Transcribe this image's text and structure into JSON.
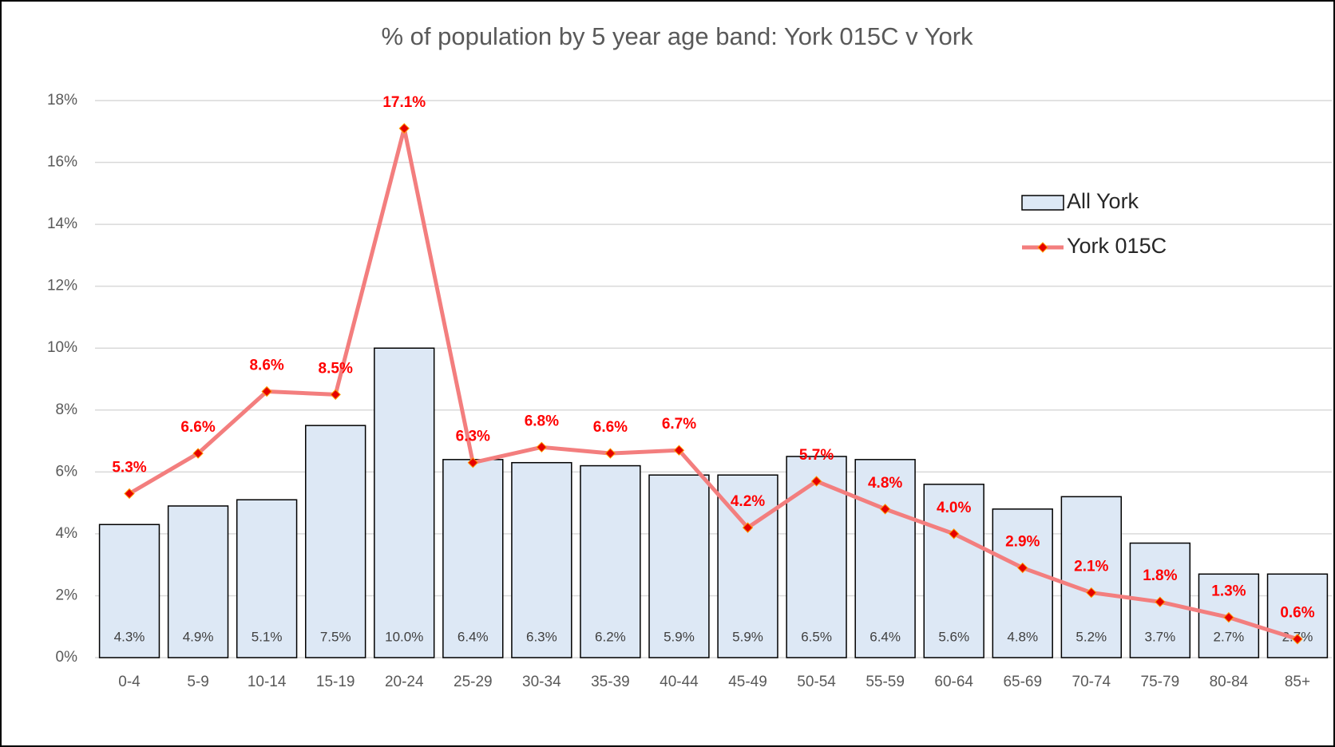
{
  "chart_data": {
    "type": "bar+line",
    "title": "% of population by 5 year age band: York 015C v York",
    "categories": [
      "0-4",
      "5-9",
      "10-14",
      "15-19",
      "20-24",
      "25-29",
      "30-34",
      "35-39",
      "40-44",
      "45-49",
      "50-54",
      "55-59",
      "60-64",
      "65-69",
      "70-74",
      "75-79",
      "80-84",
      "85+"
    ],
    "series": [
      {
        "name": "All York",
        "type": "bar",
        "color": "#dde8f5",
        "values": [
          4.3,
          4.9,
          5.1,
          7.5,
          10.0,
          6.4,
          6.3,
          6.2,
          5.9,
          5.9,
          6.5,
          6.4,
          5.6,
          4.8,
          5.2,
          3.7,
          2.7,
          2.7
        ],
        "value_labels": [
          "4.3%",
          "4.9%",
          "5.1%",
          "7.5%",
          "10.0%",
          "6.4%",
          "6.3%",
          "6.2%",
          "5.9%",
          "5.9%",
          "6.5%",
          "6.4%",
          "5.6%",
          "4.8%",
          "5.2%",
          "3.7%",
          "2.7%",
          "2.7%"
        ]
      },
      {
        "name": "York 015C",
        "type": "line",
        "color": "#f37e7e",
        "marker_color": "#e60000",
        "values": [
          5.3,
          6.6,
          8.6,
          8.5,
          17.1,
          6.3,
          6.8,
          6.6,
          6.7,
          4.2,
          5.7,
          4.8,
          4.0,
          2.9,
          2.1,
          1.8,
          1.3,
          0.6
        ],
        "value_labels": [
          "5.3%",
          "6.6%",
          "8.6%",
          "8.5%",
          "17.1%",
          "6.3%",
          "6.8%",
          "6.6%",
          "6.7%",
          "4.2%",
          "5.7%",
          "4.8%",
          "4.0%",
          "2.9%",
          "2.1%",
          "1.8%",
          "1.3%",
          "0.6%"
        ]
      }
    ],
    "ylim": [
      0,
      18
    ],
    "yticks": [
      {
        "value": 0,
        "label": "0%"
      },
      {
        "value": 2,
        "label": "2%"
      },
      {
        "value": 4,
        "label": "4%"
      },
      {
        "value": 6,
        "label": "6%"
      },
      {
        "value": 8,
        "label": "8%"
      },
      {
        "value": 10,
        "label": "10%"
      },
      {
        "value": 12,
        "label": "12%"
      },
      {
        "value": 14,
        "label": "14%"
      },
      {
        "value": 16,
        "label": "16%"
      },
      {
        "value": 18,
        "label": "18%"
      }
    ],
    "grid": true,
    "legend": "upper right"
  }
}
